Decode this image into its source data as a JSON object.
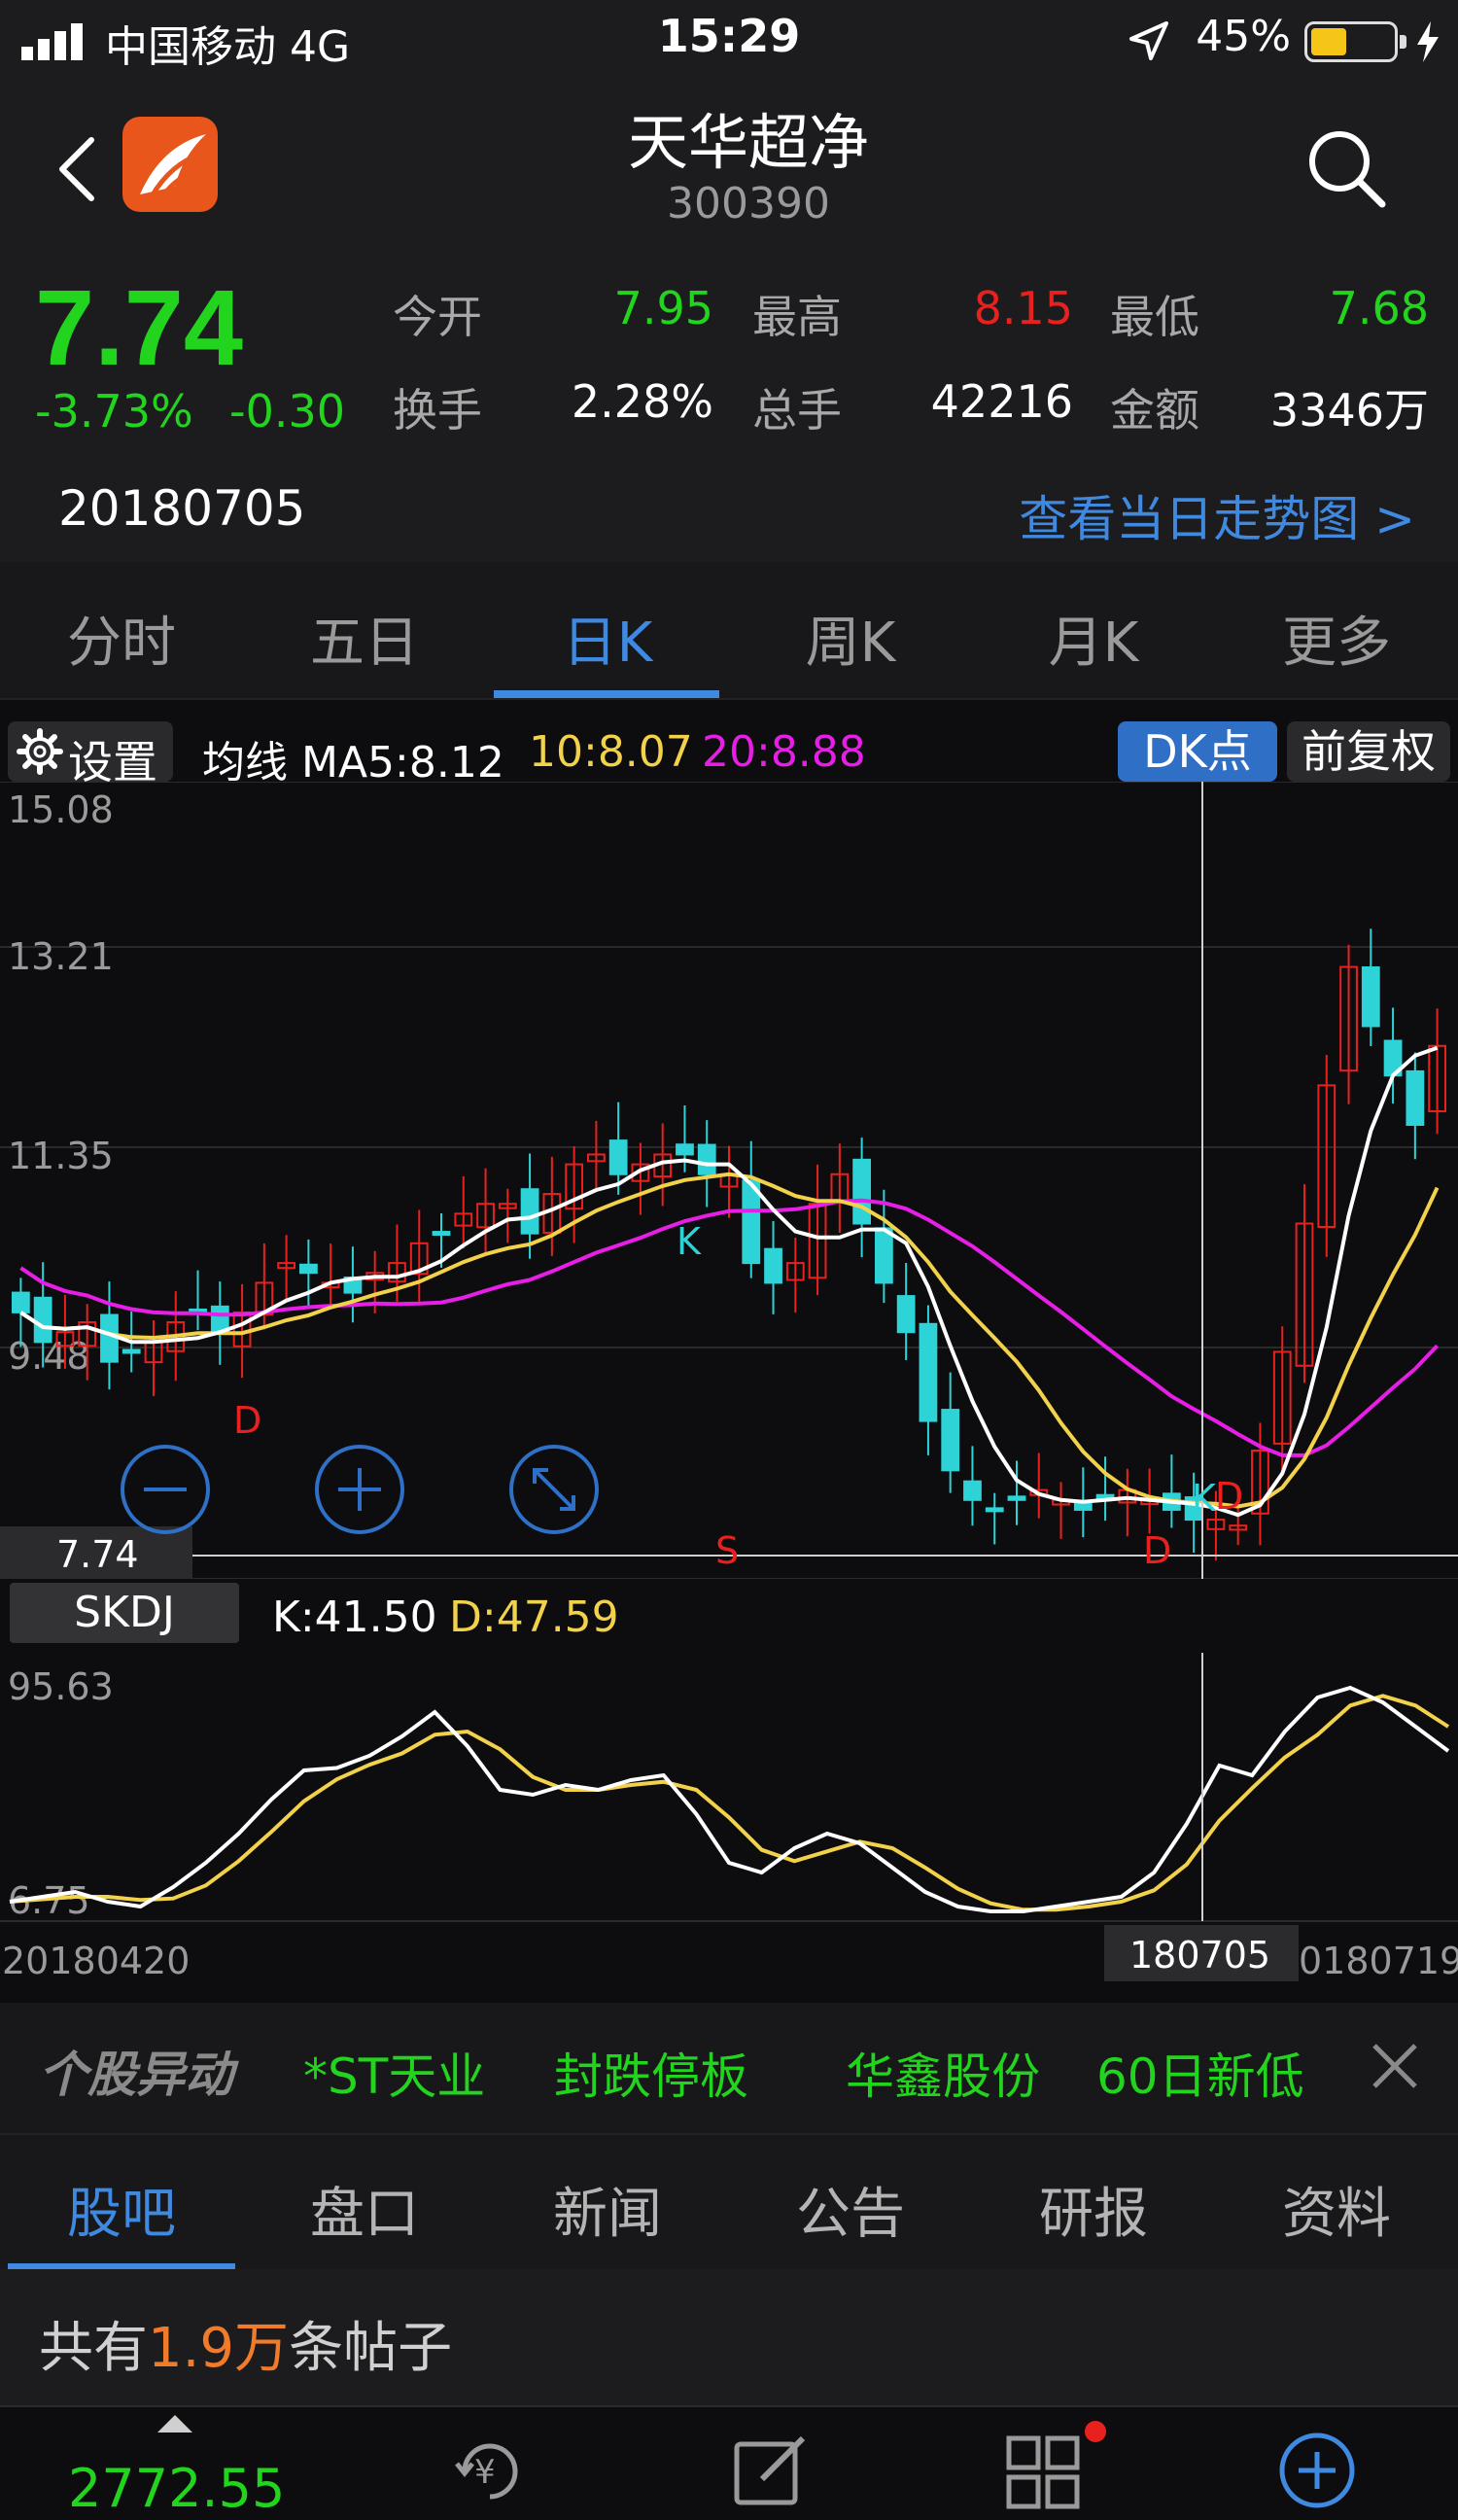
{
  "status_bar": {
    "carrier": "中国移动  4G",
    "time": "15:29",
    "battery": "45%"
  },
  "header": {
    "stock_name": "天华超净",
    "stock_code": "300390"
  },
  "quote": {
    "price": "7.74",
    "change_pct": "-3.73%",
    "change_abs": "-0.30",
    "open_label": "今开",
    "open_value": "7.95",
    "high_label": "最高",
    "high_value": "8.15",
    "low_label": "最低",
    "low_value": "7.68",
    "turnover_label": "换手",
    "turnover_value": "2.28%",
    "volume_label": "总手",
    "volume_value": "42216",
    "amount_label": "金额",
    "amount_value": "3346万",
    "date": "20180705",
    "trend_link": "查看当日走势图 >"
  },
  "tabs": [
    "分时",
    "五日",
    "日K",
    "周K",
    "月K",
    "更多"
  ],
  "active_tab": "日K",
  "ma_bar": {
    "settings_label": "设置",
    "ma_label": "均线 MA5:8.12",
    "ma10": "10:8.07",
    "ma20": "20:8.88",
    "dk_button": "DK点",
    "fq_button": "前复权"
  },
  "kline": {
    "y_ticks": [
      "15.08",
      "13.21",
      "11.35",
      "9.48"
    ],
    "current_price_tag": "7.74",
    "signal_labels": [
      "K",
      "D",
      "K",
      "D",
      "S",
      "D"
    ]
  },
  "skdj": {
    "label": "SKDJ",
    "k_text": "K:41.50",
    "d_text": "D:47.59",
    "y_max": "95.63",
    "y_min": "6.75",
    "date_start": "20180420",
    "date_cursor": "180705",
    "date_end": "0180719"
  },
  "ticker": {
    "title": "个股异动",
    "items": [
      "*ST天业",
      "封跌停板",
      "华鑫股份",
      "60日新低"
    ]
  },
  "bottom_tabs": [
    "股吧",
    "盘口",
    "新闻",
    "公告",
    "研报",
    "资料"
  ],
  "post_count": {
    "prefix": "共有",
    "number": "1.9万",
    "suffix": "条帖子"
  },
  "bottom_nav": {
    "index_value": "2772.55"
  },
  "colors": {
    "up": "#e8211e",
    "down": "#2ed3d8",
    "green": "#22d41e",
    "accent": "#3f8ae0",
    "ma5": "#ffffff",
    "ma10": "#f2d24a",
    "ma20": "#e61ee6"
  }
}
